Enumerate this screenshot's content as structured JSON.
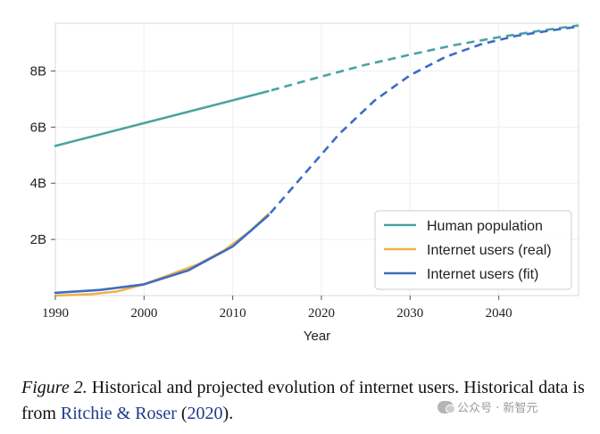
{
  "chart_data": {
    "type": "line",
    "title": "",
    "xlabel": "Year",
    "ylabel": "",
    "xlim": [
      1990,
      2049
    ],
    "ylim": [
      0,
      9.7
    ],
    "x_ticks": [
      1990,
      2000,
      2010,
      2020,
      2030,
      2040
    ],
    "x_tick_labels": [
      "1990",
      "2000",
      "2010",
      "2020",
      "2030",
      "2040"
    ],
    "y_ticks": [
      2,
      4,
      6,
      8
    ],
    "y_tick_labels": [
      "2B",
      "4B",
      "6B",
      "8B"
    ],
    "grid": true,
    "legend_position": "lower-right",
    "historical_end_year": 2014,
    "series": [
      {
        "name": "Human population",
        "color": "#4aa3a3",
        "style": "solid-then-dashed",
        "x": [
          1990,
          2000,
          2014,
          2020,
          2025,
          2030,
          2035,
          2040,
          2045,
          2049
        ],
        "y": [
          5.33,
          6.14,
          7.28,
          7.8,
          8.22,
          8.58,
          8.92,
          9.2,
          9.45,
          9.62
        ]
      },
      {
        "name": "Internet users (real)",
        "color": "#f0b24a",
        "style": "solid",
        "x": [
          1990,
          1994,
          1997,
          2000,
          2003,
          2006,
          2009,
          2012,
          2014
        ],
        "y": [
          0.0,
          0.05,
          0.15,
          0.4,
          0.75,
          1.1,
          1.6,
          2.3,
          2.9
        ]
      },
      {
        "name": "Internet users (fit)",
        "color": "#3d6cc4",
        "style": "solid-then-dashed",
        "x": [
          1990,
          1995,
          2000,
          2005,
          2010,
          2014,
          2018,
          2022,
          2026,
          2030,
          2034,
          2038,
          2042,
          2046,
          2049
        ],
        "y": [
          0.1,
          0.2,
          0.4,
          0.9,
          1.75,
          2.85,
          4.3,
          5.75,
          6.95,
          7.85,
          8.5,
          8.95,
          9.25,
          9.45,
          9.58
        ]
      }
    ]
  },
  "caption": {
    "fig_label": "Figure 2.",
    "text": " Historical and projected evolution of internet users. Historical data is from ",
    "citation": "Ritchie & Roser",
    "year_open": " (",
    "year": "2020",
    "year_close": ")."
  },
  "watermark": {
    "text": "公众号 · 新智元"
  }
}
